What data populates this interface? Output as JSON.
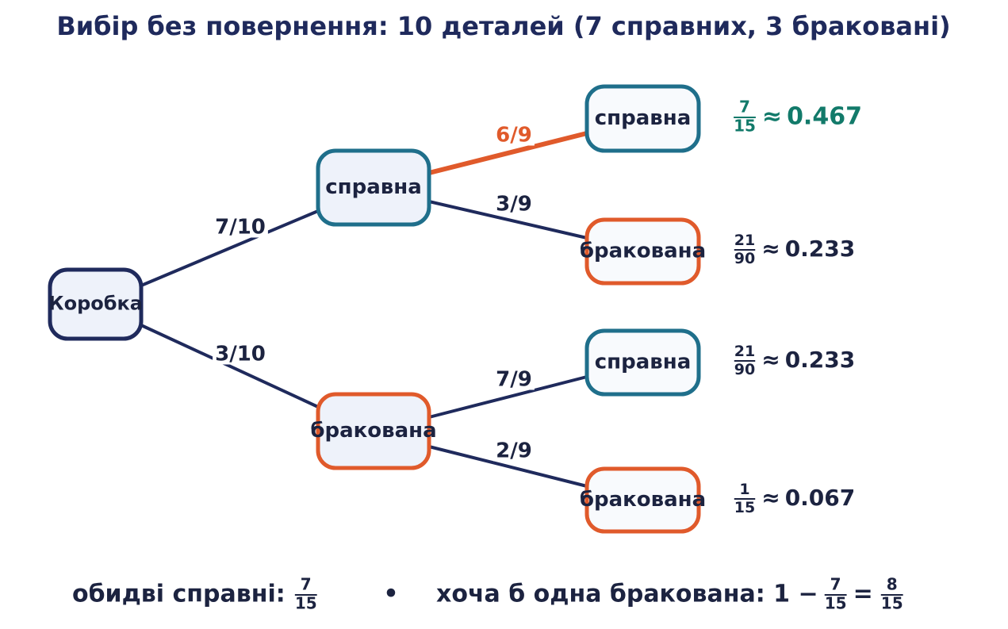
{
  "title": "Вибір без повернення: 10 деталей (7 справних, 3 браковані)",
  "nodes": [
    {
      "label": "Коробка"
    },
    {
      "label": "справна"
    },
    {
      "label": "бракована"
    },
    {
      "label": "справна"
    },
    {
      "label": "бракована"
    },
    {
      "label": "справна"
    },
    {
      "label": "бракована"
    }
  ],
  "edges": [
    {
      "label": "7/10"
    },
    {
      "label": "3/10"
    },
    {
      "label": "6/9"
    },
    {
      "label": "3/9"
    },
    {
      "label": "7/9"
    },
    {
      "label": "2/9"
    }
  ],
  "outcomes": [
    {
      "numerator": "7",
      "denominator": "15",
      "approx": "≈",
      "value": "0.467"
    },
    {
      "numerator": "21",
      "denominator": "90",
      "approx": "≈",
      "value": "0.233"
    },
    {
      "numerator": "21",
      "denominator": "90",
      "approx": "≈",
      "value": "0.233"
    },
    {
      "numerator": "1",
      "denominator": "15",
      "approx": "≈",
      "value": "0.067"
    }
  ],
  "footer": {
    "left_label": "обидві справні:",
    "left_numerator": "7",
    "left_denominator": "15",
    "separator": "•",
    "right_label": "хоча б одна бракована: 1 −",
    "right_numerator": "7",
    "right_denominator": "15",
    "equals": "=",
    "result_numerator": "8",
    "result_denominator": "15"
  }
}
